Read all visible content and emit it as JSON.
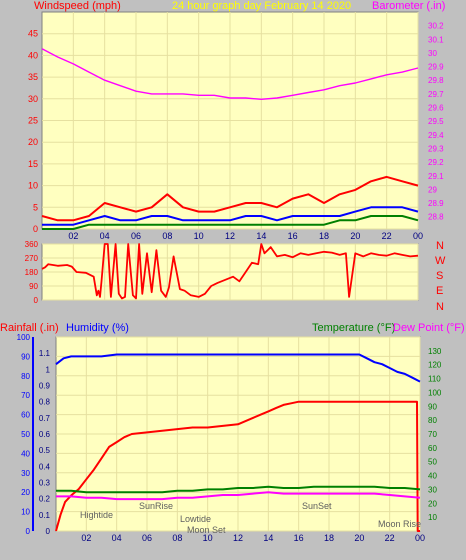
{
  "header": {
    "left_label": "Windspeed (mph)",
    "center_label": "24 hour graph day   February 14 2020",
    "right_label": "Barometer (.in)"
  },
  "middle_panel": {
    "direction_labels": [
      "N",
      "W",
      "S",
      "E",
      "N"
    ]
  },
  "bottom_header": {
    "rainfall_label": "Rainfall (.in)",
    "humidity_label": "Humidity (%)",
    "temperature_label": "Temperature (°F)",
    "dewpoint_label": "Dew Point (°F)"
  },
  "colors": {
    "background": "#c0c0c0",
    "plot_bg": "#ffffc0",
    "wind_gust": "#ff0000",
    "wind_avg": "#0000ff",
    "wind_low": "#008000",
    "barometer": "#ff00ff",
    "direction": "#ff0000",
    "rainfall": "#ff0000",
    "humidity": "#0000ff",
    "temperature": "#008000",
    "dewpoint": "#ff00ff"
  },
  "chart_data": [
    {
      "type": "line",
      "xlim": [
        0,
        24
      ],
      "x_ticks": [
        "02",
        "04",
        "06",
        "08",
        "10",
        "12",
        "14",
        "16",
        "18",
        "20",
        "22",
        "00"
      ],
      "y_left_ticks": [
        "0",
        "5",
        "10",
        "15",
        "20",
        "25",
        "30",
        "35",
        "40",
        "45"
      ],
      "y_left_lim": [
        0,
        50
      ],
      "y_right_ticks": [
        "28.8",
        "28.9",
        "29",
        "29.1",
        "29.2",
        "29.3",
        "29.4",
        "29.5",
        "29.6",
        "29.7",
        "29.8",
        "29.9",
        "30",
        "30.1",
        "30.2"
      ],
      "y_right_lim": [
        28.71,
        30.3
      ],
      "series": [
        {
          "name": "Barometer",
          "axis": "right",
          "x": [
            0,
            1,
            2,
            3,
            4,
            5,
            6,
            7,
            8,
            9,
            10,
            11,
            12,
            13,
            14,
            15,
            16,
            17,
            18,
            19,
            20,
            21,
            22,
            23,
            24
          ],
          "values": [
            30.03,
            29.97,
            29.92,
            29.86,
            29.8,
            29.76,
            29.72,
            29.7,
            29.7,
            29.7,
            29.69,
            29.69,
            29.67,
            29.67,
            29.66,
            29.67,
            29.69,
            29.71,
            29.73,
            29.76,
            29.78,
            29.81,
            29.84,
            29.86,
            29.89
          ]
        },
        {
          "name": "Wind gust",
          "axis": "left",
          "x": [
            0,
            1,
            2,
            3,
            4,
            5,
            6,
            7,
            8,
            9,
            10,
            11,
            12,
            13,
            14,
            15,
            16,
            17,
            18,
            19,
            20,
            21,
            22,
            23,
            24
          ],
          "values": [
            3,
            2,
            2,
            3,
            6,
            5,
            4,
            5,
            8,
            5,
            4,
            4,
            5,
            6,
            6,
            5,
            7,
            8,
            6,
            8,
            9,
            11,
            12,
            11,
            10
          ]
        },
        {
          "name": "Wind average",
          "axis": "left",
          "x": [
            0,
            1,
            2,
            3,
            4,
            5,
            6,
            7,
            8,
            9,
            10,
            11,
            12,
            13,
            14,
            15,
            16,
            17,
            18,
            19,
            20,
            21,
            22,
            23,
            24
          ],
          "values": [
            1,
            1,
            1,
            2,
            3,
            2,
            2,
            3,
            3,
            2,
            2,
            2,
            2,
            3,
            3,
            2,
            3,
            3,
            3,
            3,
            4,
            5,
            5,
            5,
            4
          ]
        },
        {
          "name": "Wind low",
          "axis": "left",
          "x": [
            0,
            1,
            2,
            3,
            4,
            5,
            6,
            7,
            8,
            9,
            10,
            11,
            12,
            13,
            14,
            15,
            16,
            17,
            18,
            19,
            20,
            21,
            22,
            23,
            24
          ],
          "values": [
            0,
            0,
            0,
            1,
            1,
            1,
            1,
            1,
            1,
            1,
            1,
            1,
            1,
            1,
            1,
            1,
            1,
            1,
            1,
            2,
            2,
            3,
            3,
            3,
            2
          ]
        }
      ]
    },
    {
      "type": "line",
      "xlim": [
        0,
        24
      ],
      "y_ticks": [
        "0",
        "90",
        "180",
        "270",
        "360"
      ],
      "ylim": [
        0,
        360
      ],
      "series": [
        {
          "name": "Wind direction",
          "x": [
            0,
            0.2,
            0.4,
            1,
            1.6,
            1.9,
            2.2,
            2.8,
            3.3,
            3.5,
            3.6,
            3.7,
            3.8,
            4,
            4.2,
            4.4,
            4.7,
            4.9,
            5.1,
            5.3,
            5.5,
            5.8,
            6,
            6.2,
            6.4,
            6.7,
            7,
            7.3,
            7.6,
            7.9,
            8.1,
            8.4,
            8.8,
            9.1,
            9.5,
            10,
            10.4,
            10.8,
            11.2,
            11.7,
            12.2,
            12.6,
            13,
            13.4,
            13.8,
            14,
            14.2,
            14.4,
            14.6,
            15,
            15.5,
            16,
            16.5,
            17,
            17.5,
            18,
            18.5,
            19,
            19.4,
            19.6,
            20,
            20.5,
            21,
            21.5,
            22,
            22.5,
            23,
            23.5,
            24
          ],
          "values": [
            200,
            210,
            230,
            220,
            225,
            215,
            180,
            175,
            150,
            30,
            60,
            20,
            120,
            360,
            360,
            20,
            360,
            40,
            10,
            20,
            360,
            30,
            10,
            360,
            40,
            300,
            50,
            320,
            60,
            20,
            80,
            280,
            70,
            60,
            30,
            20,
            40,
            90,
            110,
            130,
            150,
            120,
            180,
            240,
            230,
            360,
            300,
            320,
            340,
            280,
            290,
            275,
            300,
            290,
            300,
            310,
            305,
            290,
            300,
            20,
            300,
            280,
            300,
            290,
            285,
            300,
            290,
            280,
            285
          ]
        }
      ]
    },
    {
      "type": "line",
      "xlim": [
        0,
        24
      ],
      "x_ticks": [
        "02",
        "04",
        "06",
        "08",
        "10",
        "12",
        "14",
        "16",
        "18",
        "20",
        "22",
        "00"
      ],
      "y_left_ticks": [
        "0",
        "10",
        "20",
        "30",
        "40",
        "50",
        "60",
        "70",
        "80",
        "90",
        "100"
      ],
      "y_left_lim": [
        0,
        100
      ],
      "rain_ticks": [
        "0",
        "0.1",
        "0.2",
        "0.3",
        "0.4",
        "0.5",
        "0.6",
        "0.7",
        "0.8",
        "0.9",
        "1",
        "1.1"
      ],
      "rain_lim": [
        0,
        1.2
      ],
      "y_right_ticks": [
        "10",
        "20",
        "30",
        "40",
        "50",
        "60",
        "70",
        "80",
        "90",
        "100",
        "110",
        "120",
        "130"
      ],
      "y_right_lim": [
        0,
        140
      ],
      "series": [
        {
          "name": "Humidity",
          "axis": "left",
          "x": [
            0,
            0.5,
            1,
            2,
            3,
            4,
            5,
            6,
            7,
            8,
            9,
            10,
            11,
            12,
            13,
            14,
            15,
            16,
            17,
            18,
            19,
            20,
            20.5,
            21,
            21.5,
            22,
            22.5,
            23,
            23.5,
            24
          ],
          "values": [
            86,
            89,
            90,
            90,
            90,
            91,
            91,
            91,
            91,
            91,
            91,
            91,
            91,
            91,
            91,
            91,
            91,
            91,
            91,
            91,
            91,
            91,
            89,
            87,
            86,
            84,
            82,
            81,
            79,
            77
          ]
        },
        {
          "name": "Rainfall",
          "axis": "rain",
          "x": [
            0,
            0.3,
            0.6,
            1,
            1.5,
            2,
            2.5,
            3,
            3.5,
            4,
            4.5,
            5,
            6,
            7,
            8,
            9,
            10,
            11,
            12,
            12.5,
            13,
            13.5,
            14,
            14.5,
            15,
            15.5,
            16,
            17,
            18,
            19,
            20,
            21,
            22,
            23,
            23.8,
            23.85,
            24
          ],
          "values": [
            0,
            0.1,
            0.18,
            0.22,
            0.26,
            0.32,
            0.38,
            0.45,
            0.52,
            0.55,
            0.58,
            0.6,
            0.61,
            0.62,
            0.63,
            0.64,
            0.64,
            0.65,
            0.66,
            0.68,
            0.7,
            0.72,
            0.74,
            0.76,
            0.78,
            0.79,
            0.8,
            0.8,
            0.8,
            0.8,
            0.8,
            0.8,
            0.8,
            0.8,
            0.8,
            0.0,
            0.0
          ]
        },
        {
          "name": "Temperature",
          "axis": "right",
          "x": [
            0,
            1,
            2,
            3,
            4,
            5,
            6,
            7,
            8,
            9,
            10,
            11,
            12,
            13,
            14,
            15,
            16,
            17,
            18,
            19,
            20,
            21,
            22,
            23,
            24
          ],
          "values": [
            29,
            29,
            28,
            28,
            28,
            28,
            28,
            28,
            29,
            29,
            30,
            30,
            31,
            31,
            32,
            31,
            31,
            32,
            32,
            32,
            32,
            32,
            31,
            31,
            30
          ]
        },
        {
          "name": "Dew Point",
          "axis": "right",
          "x": [
            0,
            1,
            2,
            3,
            4,
            5,
            6,
            7,
            8,
            9,
            10,
            11,
            12,
            13,
            14,
            15,
            16,
            17,
            18,
            19,
            20,
            21,
            22,
            23,
            24
          ],
          "values": [
            25,
            25,
            24,
            24,
            23,
            23,
            23,
            23,
            24,
            24,
            25,
            26,
            26,
            27,
            28,
            27,
            27,
            27,
            27,
            27,
            27,
            27,
            26,
            25,
            24
          ]
        }
      ],
      "annotations": [
        "Hightide",
        "SunRise",
        "Lowtide",
        "Moon Set",
        "SunSet",
        "Moon Rise"
      ]
    }
  ]
}
